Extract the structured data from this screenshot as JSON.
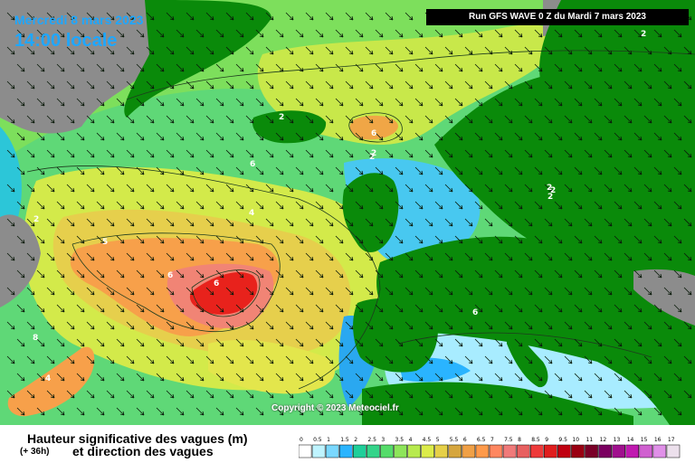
{
  "header": {
    "date": "Mercredi 8 mars 2023",
    "time": "14:00 locale",
    "run": "Run GFS WAVE 0 Z du Mardi 7 mars 2023"
  },
  "credit": "Copyright © 2023 Meteociel.fr",
  "footer": {
    "title": "Hauteur significative des vagues (m)",
    "lead": "(+ 36h)",
    "subtitle": "et direction des vagues"
  },
  "contour_labels": [
    "2",
    "2",
    "2",
    "6",
    "6",
    "6",
    "4",
    "2",
    "5",
    "6",
    "8",
    "4",
    "6",
    "2",
    "2",
    "2",
    "2"
  ],
  "legend": {
    "ticks": [
      "0",
      "0.5",
      "1",
      "1.5",
      "2",
      "2.5",
      "3",
      "3.5",
      "4",
      "4.5",
      "5",
      "5.5",
      "6",
      "6.5",
      "7",
      "7.5",
      "8",
      "8.5",
      "9",
      "9.5",
      "10",
      "11",
      "12",
      "13",
      "14",
      "15",
      "16",
      "17"
    ],
    "colors": [
      "#ffffff",
      "#bff4ff",
      "#7ad8ff",
      "#2ab4ff",
      "#1fcf9a",
      "#34d48a",
      "#55dc6a",
      "#8ee55a",
      "#b7ea4e",
      "#dcec4a",
      "#e6d048",
      "#d6a63e",
      "#f0a046",
      "#ff9a4a",
      "#ff8760",
      "#f07a7a",
      "#e86060",
      "#ee3a3a",
      "#e01e1e",
      "#c00010",
      "#9a0012",
      "#7a0028",
      "#7a0060",
      "#a0108e",
      "#c01ab0",
      "#d060d0",
      "#e090e8",
      "#ece0ec"
    ]
  },
  "colors": {
    "land": "#0a8a0a",
    "ice_grey": "#8c8c8c",
    "sea_low": "#7adcff",
    "sea_mid": "#54d66e",
    "waves_high": "#ff8c3a",
    "waves_max": "#e8201a"
  }
}
